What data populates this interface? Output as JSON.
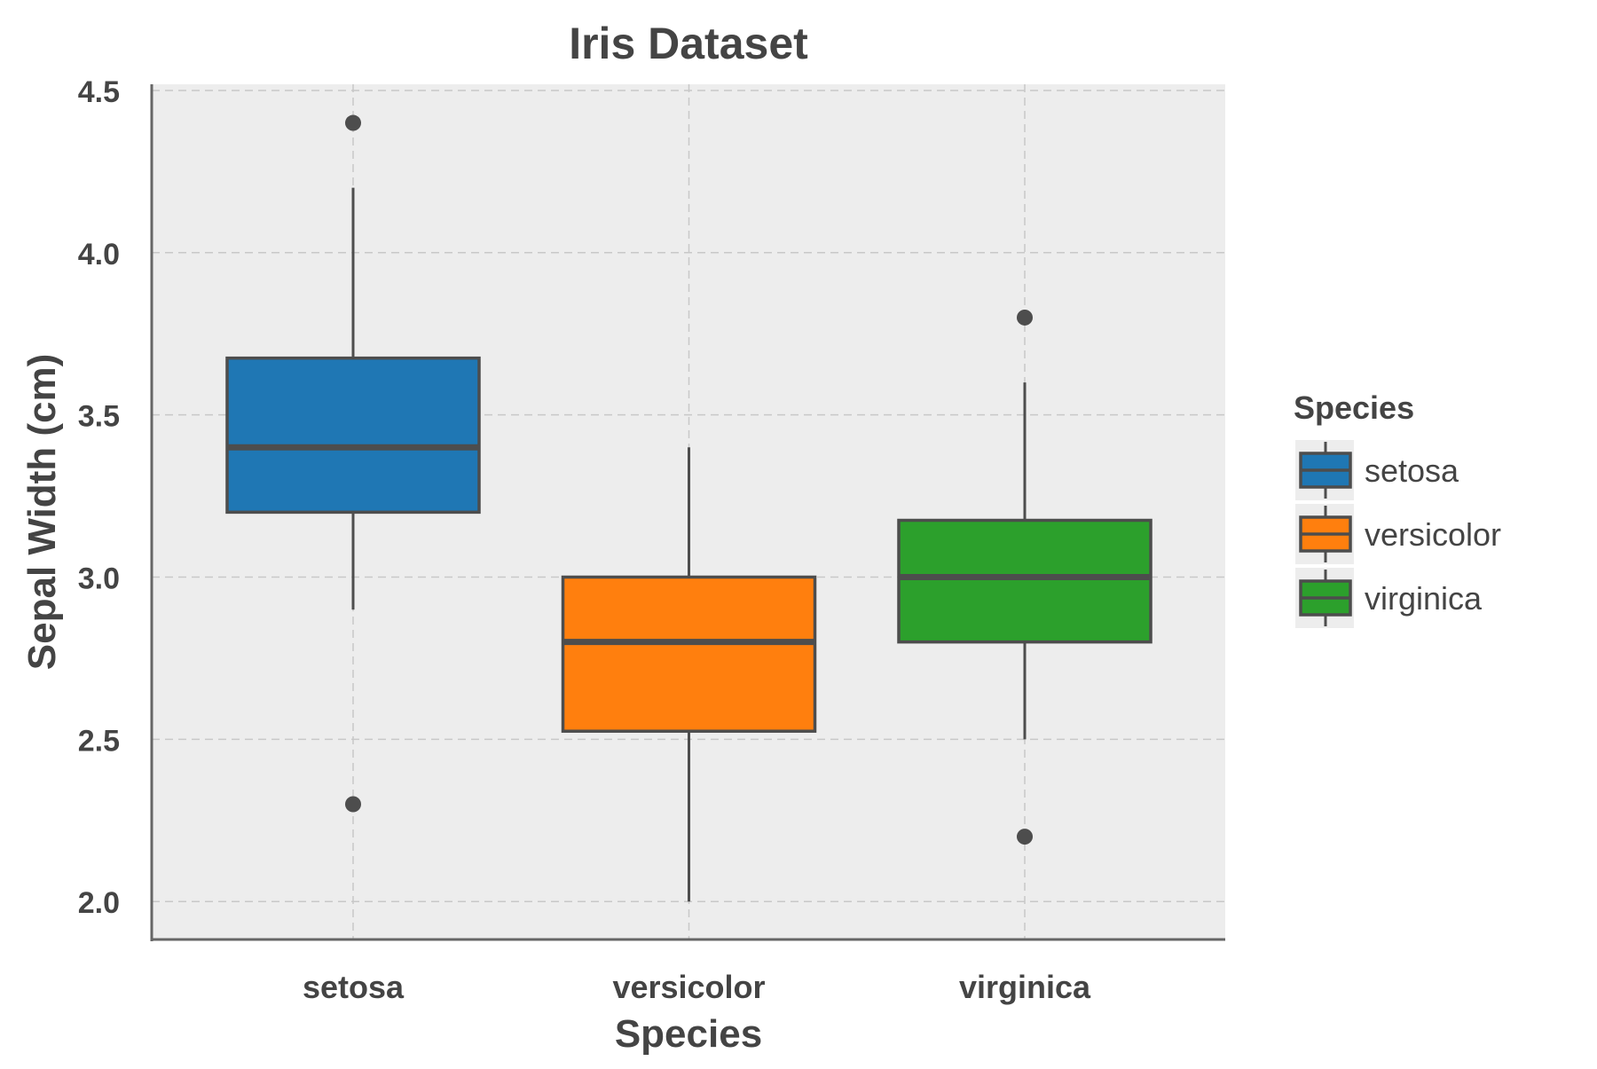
{
  "chart_data": {
    "type": "box",
    "title": "Iris Dataset",
    "xlabel": "Species",
    "ylabel": "Sepal Width (cm)",
    "ylim": [
      1.883,
      4.519
    ],
    "yticks": [
      "2.0",
      "2.5",
      "3.0",
      "3.5",
      "4.0",
      "4.5"
    ],
    "grid": true,
    "categories": [
      "setosa",
      "versicolor",
      "virginica"
    ],
    "series": [
      {
        "name": "setosa",
        "color": "#1f77b4",
        "whisker_low": 2.9,
        "q1": 3.2,
        "median": 3.4,
        "q3": 3.675,
        "whisker_high": 4.2,
        "outliers": [
          4.4,
          2.3
        ]
      },
      {
        "name": "versicolor",
        "color": "#ff7f0e",
        "whisker_low": 2.0,
        "q1": 2.525,
        "median": 2.8,
        "q3": 3.0,
        "whisker_high": 3.4,
        "outliers": []
      },
      {
        "name": "virginica",
        "color": "#2ca02c",
        "whisker_low": 2.5,
        "q1": 2.8,
        "median": 3.0,
        "q3": 3.175,
        "whisker_high": 3.6,
        "outliers": [
          3.8,
          2.2
        ]
      }
    ],
    "legend": {
      "title": "Species",
      "placement": "right",
      "entries": [
        "setosa",
        "versicolor",
        "virginica"
      ]
    }
  }
}
